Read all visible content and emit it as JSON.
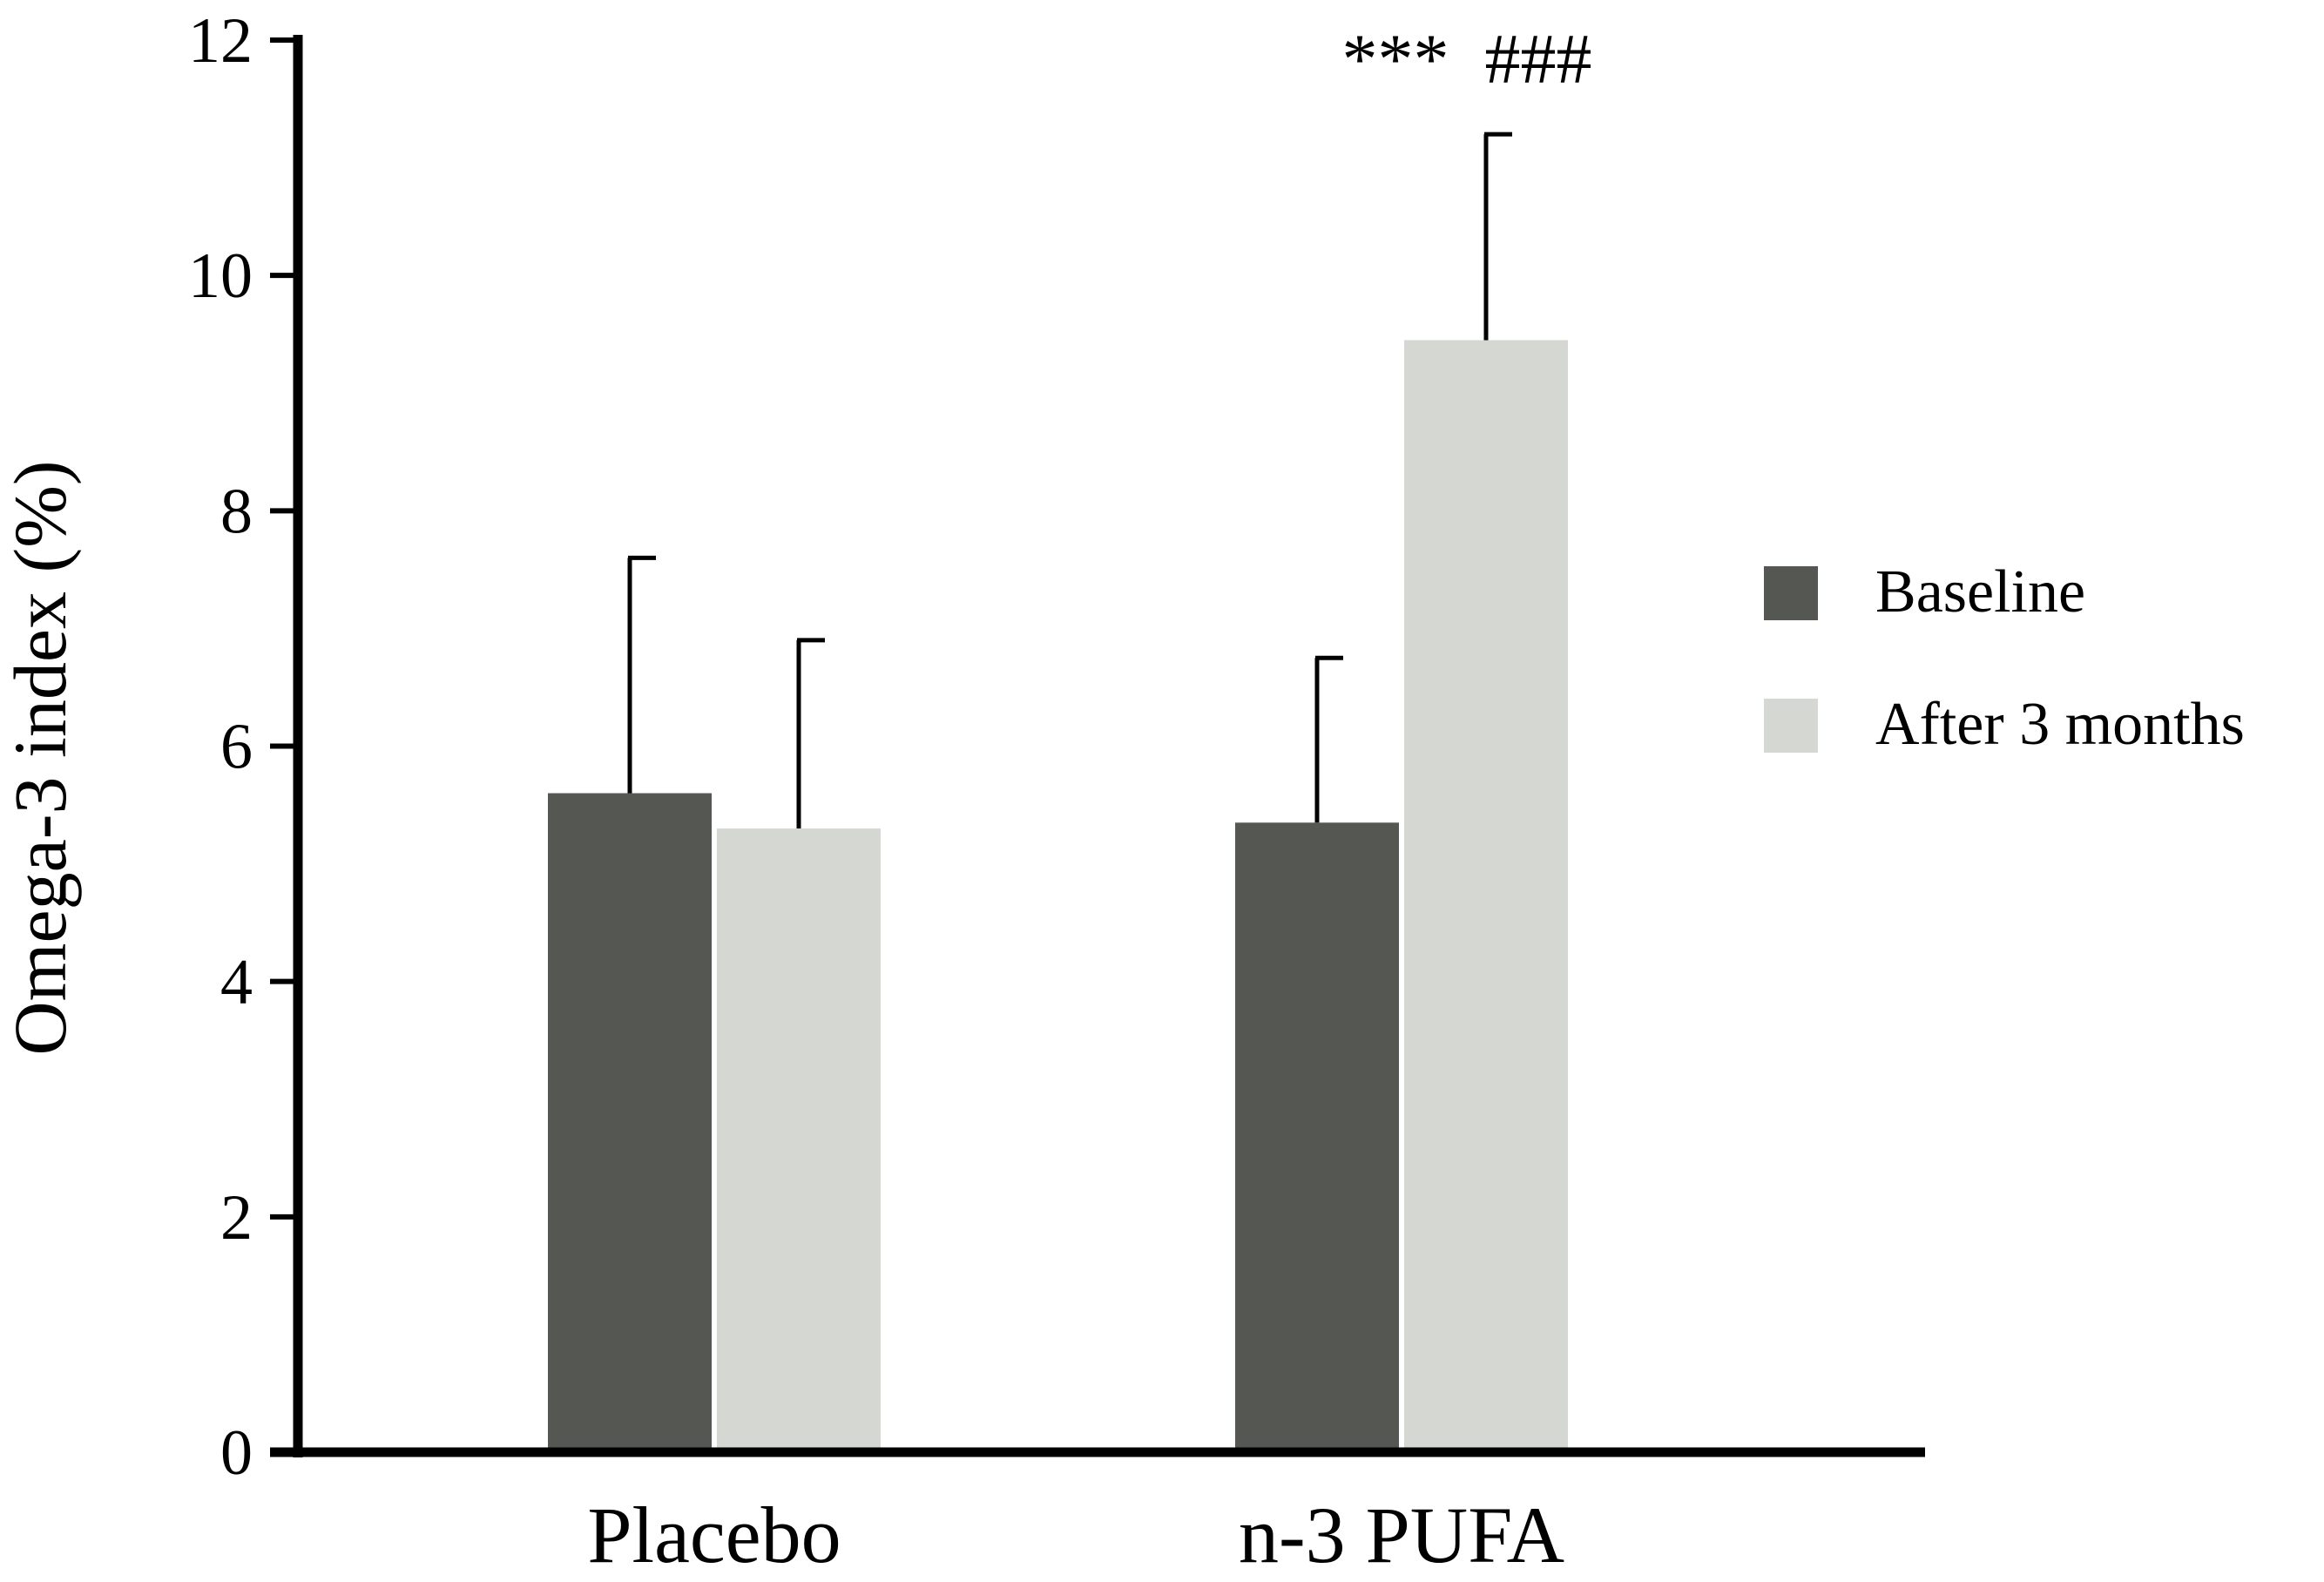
{
  "chart_data": {
    "type": "bar",
    "categories": [
      "Placebo",
      "n-3 PUFA"
    ],
    "series": [
      {
        "name": "Baseline",
        "values": [
          5.6,
          5.35
        ],
        "error": [
          2.0,
          1.4
        ],
        "color": "#555752"
      },
      {
        "name": "After 3 months",
        "values": [
          5.3,
          9.45
        ],
        "error": [
          1.6,
          1.75
        ],
        "color": "#d5d8d2"
      }
    ],
    "ylabel": "Omega-3 index (%)",
    "xlabel": "",
    "ylim": [
      0,
      12
    ],
    "yticks": [
      "0",
      "2",
      "4",
      "6",
      "8",
      "10",
      "12"
    ],
    "grid": false,
    "legend": "right",
    "annotations": [
      {
        "category": "n-3 PUFA",
        "text": "***  ###"
      }
    ]
  }
}
